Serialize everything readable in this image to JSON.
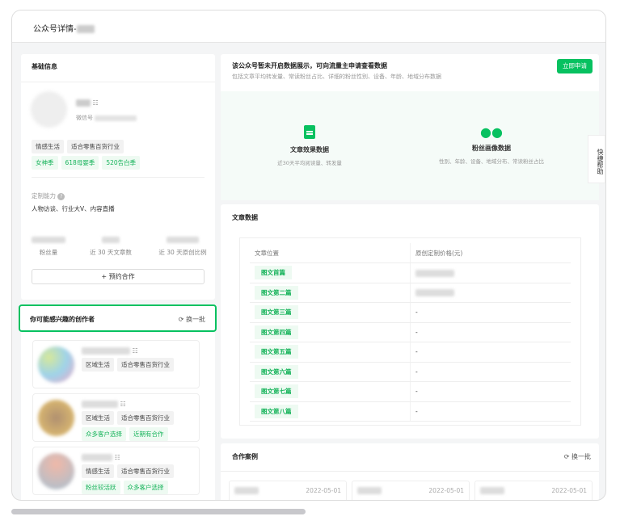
{
  "header": {
    "title": "公众号详情-"
  },
  "basic": {
    "title": "基础信息",
    "wechat_label": "微信号",
    "tags": [
      "情感生活",
      "适合零售百货行业"
    ],
    "green_tags": [
      "女神季",
      "618母婴季",
      "520告白季"
    ],
    "ability_label": "定制能力",
    "ability_value": "人物访谈、行业大V、内容直播",
    "stats": [
      "粉丝量",
      "近 30 天文章数",
      "近 30 天原创比例"
    ],
    "reserve_button": "预约合作"
  },
  "creators": {
    "title": "你可能感兴趣的创作者",
    "refresh": "换一批",
    "items": [
      {
        "tags": [
          "区域生活",
          "适合零售百货行业"
        ],
        "green_tags": []
      },
      {
        "tags": [
          "区域生活",
          "适合零售百货行业"
        ],
        "green_tags": [
          "众多客户选择",
          "近期有合作"
        ]
      },
      {
        "tags": [
          "情感生活",
          "适合零售百货行业"
        ],
        "green_tags": [
          "粉丝较活跃",
          "众多客户选择"
        ]
      }
    ]
  },
  "notice": {
    "title": "该公众号暂未开启数据展示，可向流量主申请查看数据",
    "subtitle": "包括文章平均转发量、常读粉丝占比、详细的粉丝性别、设备、年龄、地域分布数据",
    "apply_button": "立即申请",
    "features": [
      {
        "icon": "document-icon",
        "title": "文章效果数据",
        "desc": "近30天平均阅读量、转发量"
      },
      {
        "icon": "users-icon",
        "title": "粉丝画像数据",
        "desc": "性别、年龄、设备、地域分布、常读粉丝占比"
      }
    ]
  },
  "quick_help": "快捷帮助",
  "articles": {
    "title": "文章数据",
    "columns": [
      "文章位置",
      "原创定制价格(元)"
    ],
    "rows": [
      {
        "pos": "图文首篇",
        "price": ""
      },
      {
        "pos": "图文第二篇",
        "price": ""
      },
      {
        "pos": "图文第三篇",
        "price": "-"
      },
      {
        "pos": "图文第四篇",
        "price": "-"
      },
      {
        "pos": "图文第五篇",
        "price": "-"
      },
      {
        "pos": "图文第六篇",
        "price": "-"
      },
      {
        "pos": "图文第七篇",
        "price": "-"
      },
      {
        "pos": "图文第八篇",
        "price": "-"
      }
    ]
  },
  "cases": {
    "title": "合作案例",
    "refresh": "换一批",
    "items": [
      {
        "date": "2022-05-01"
      },
      {
        "date": "2022-05-01"
      },
      {
        "date": "2022-05-01"
      }
    ]
  },
  "colors": {
    "accent": "#07c160"
  }
}
